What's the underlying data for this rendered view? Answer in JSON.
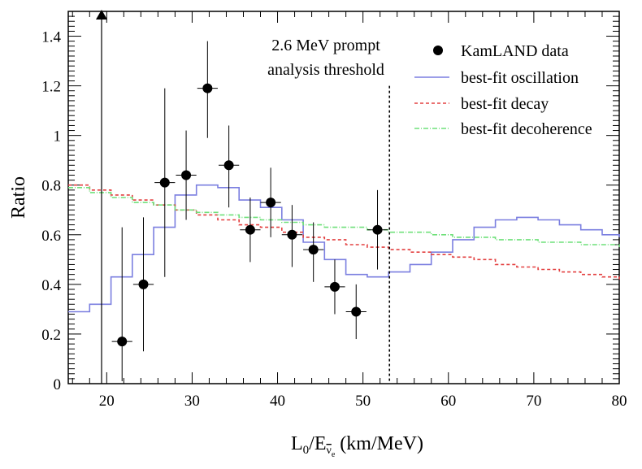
{
  "chart_data": {
    "type": "scatter",
    "title": "",
    "xlabel": {
      "L": "L",
      "sub1": "0",
      "slash": "/E",
      "nu": "ν",
      "sub2": "e",
      "units": "(km/MeV)"
    },
    "ylabel": "Ratio",
    "xlim": [
      15.5,
      80
    ],
    "ylim": [
      0,
      1.5
    ],
    "xticks": [
      20,
      30,
      40,
      50,
      60,
      70,
      80
    ],
    "yticks": [
      0,
      0.2,
      0.4,
      0.6,
      0.8,
      1,
      1.2,
      1.4
    ],
    "ytick_labels": [
      "0",
      "0.2",
      "0.4",
      "0.6",
      "0.8",
      "1",
      "1.2",
      "1.4"
    ],
    "grid": false,
    "legend_position": "top-right",
    "annotation": {
      "line1": "2.6 MeV prompt",
      "line2": "analysis threshold",
      "x": 53.1
    },
    "arrow": {
      "x": 19.4,
      "y_from": 0,
      "y_to": 1.5
    },
    "series": [
      {
        "name": "KamLAND data",
        "kind": "points",
        "color": "#000000",
        "points": [
          {
            "x": 21.8,
            "y": 0.17,
            "ylo": 0.01,
            "yhi": 0.63,
            "xerr": 1.2
          },
          {
            "x": 24.3,
            "y": 0.4,
            "ylo": 0.13,
            "yhi": 0.67,
            "xerr": 1.2
          },
          {
            "x": 26.8,
            "y": 0.81,
            "ylo": 0.43,
            "yhi": 1.19,
            "xerr": 1.2
          },
          {
            "x": 29.3,
            "y": 0.84,
            "ylo": 0.66,
            "yhi": 1.02,
            "xerr": 1.2
          },
          {
            "x": 31.8,
            "y": 1.19,
            "ylo": 0.99,
            "yhi": 1.38,
            "xerr": 1.2
          },
          {
            "x": 34.3,
            "y": 0.88,
            "ylo": 0.71,
            "yhi": 1.04,
            "xerr": 1.2
          },
          {
            "x": 36.8,
            "y": 0.62,
            "ylo": 0.49,
            "yhi": 0.75,
            "xerr": 1.2
          },
          {
            "x": 39.2,
            "y": 0.73,
            "ylo": 0.59,
            "yhi": 0.87,
            "xerr": 1.2
          },
          {
            "x": 41.7,
            "y": 0.6,
            "ylo": 0.47,
            "yhi": 0.72,
            "xerr": 1.2
          },
          {
            "x": 44.2,
            "y": 0.54,
            "ylo": 0.41,
            "yhi": 0.65,
            "xerr": 1.2
          },
          {
            "x": 46.7,
            "y": 0.39,
            "ylo": 0.28,
            "yhi": 0.5,
            "xerr": 1.2
          },
          {
            "x": 49.2,
            "y": 0.29,
            "ylo": 0.18,
            "yhi": 0.4,
            "xerr": 1.2
          },
          {
            "x": 51.7,
            "y": 0.62,
            "ylo": 0.46,
            "yhi": 0.78,
            "xerr": 1.2
          }
        ]
      },
      {
        "name": "best-fit oscillation",
        "kind": "step",
        "color": "#7b7fe0",
        "dash": "",
        "edges": [
          15.5,
          18,
          20.5,
          23,
          25.5,
          28,
          30.5,
          33,
          35.5,
          38,
          40.5,
          43,
          45.5,
          48,
          50.5,
          53,
          55.5,
          58,
          60.5,
          63,
          65.5,
          68,
          70.5,
          73,
          75.5,
          78,
          80
        ],
        "values": [
          0.29,
          0.32,
          0.43,
          0.52,
          0.63,
          0.76,
          0.8,
          0.79,
          0.74,
          0.71,
          0.66,
          0.57,
          0.5,
          0.44,
          0.43,
          0.45,
          0.48,
          0.53,
          0.58,
          0.63,
          0.66,
          0.67,
          0.66,
          0.64,
          0.62,
          0.6,
          0.59
        ]
      },
      {
        "name": "best-fit decay",
        "kind": "step",
        "color": "#e34040",
        "dash": "4,3",
        "edges": [
          15.5,
          18,
          20.5,
          23,
          25.5,
          28,
          30.5,
          33,
          35.5,
          38,
          40.5,
          43,
          45.5,
          48,
          50.5,
          53,
          55.5,
          58,
          60.5,
          63,
          65.5,
          68,
          70.5,
          73,
          75.5,
          78,
          80
        ],
        "values": [
          0.8,
          0.78,
          0.76,
          0.74,
          0.72,
          0.7,
          0.68,
          0.66,
          0.64,
          0.63,
          0.61,
          0.59,
          0.58,
          0.56,
          0.55,
          0.54,
          0.53,
          0.52,
          0.51,
          0.5,
          0.48,
          0.47,
          0.46,
          0.45,
          0.44,
          0.43,
          0.42
        ]
      },
      {
        "name": "best-fit decoherence",
        "kind": "step",
        "color": "#6fe07a",
        "dash": "6,2,1,2",
        "edges": [
          15.5,
          18,
          20.5,
          23,
          25.5,
          28,
          30.5,
          33,
          35.5,
          38,
          40.5,
          43,
          45.5,
          48,
          50.5,
          53,
          55.5,
          58,
          60.5,
          63,
          65.5,
          68,
          70.5,
          73,
          75.5,
          78,
          80
        ],
        "values": [
          0.79,
          0.77,
          0.75,
          0.73,
          0.72,
          0.7,
          0.69,
          0.68,
          0.67,
          0.66,
          0.65,
          0.64,
          0.63,
          0.63,
          0.62,
          0.61,
          0.61,
          0.6,
          0.59,
          0.59,
          0.58,
          0.58,
          0.57,
          0.57,
          0.56,
          0.56,
          0.55
        ]
      }
    ]
  }
}
